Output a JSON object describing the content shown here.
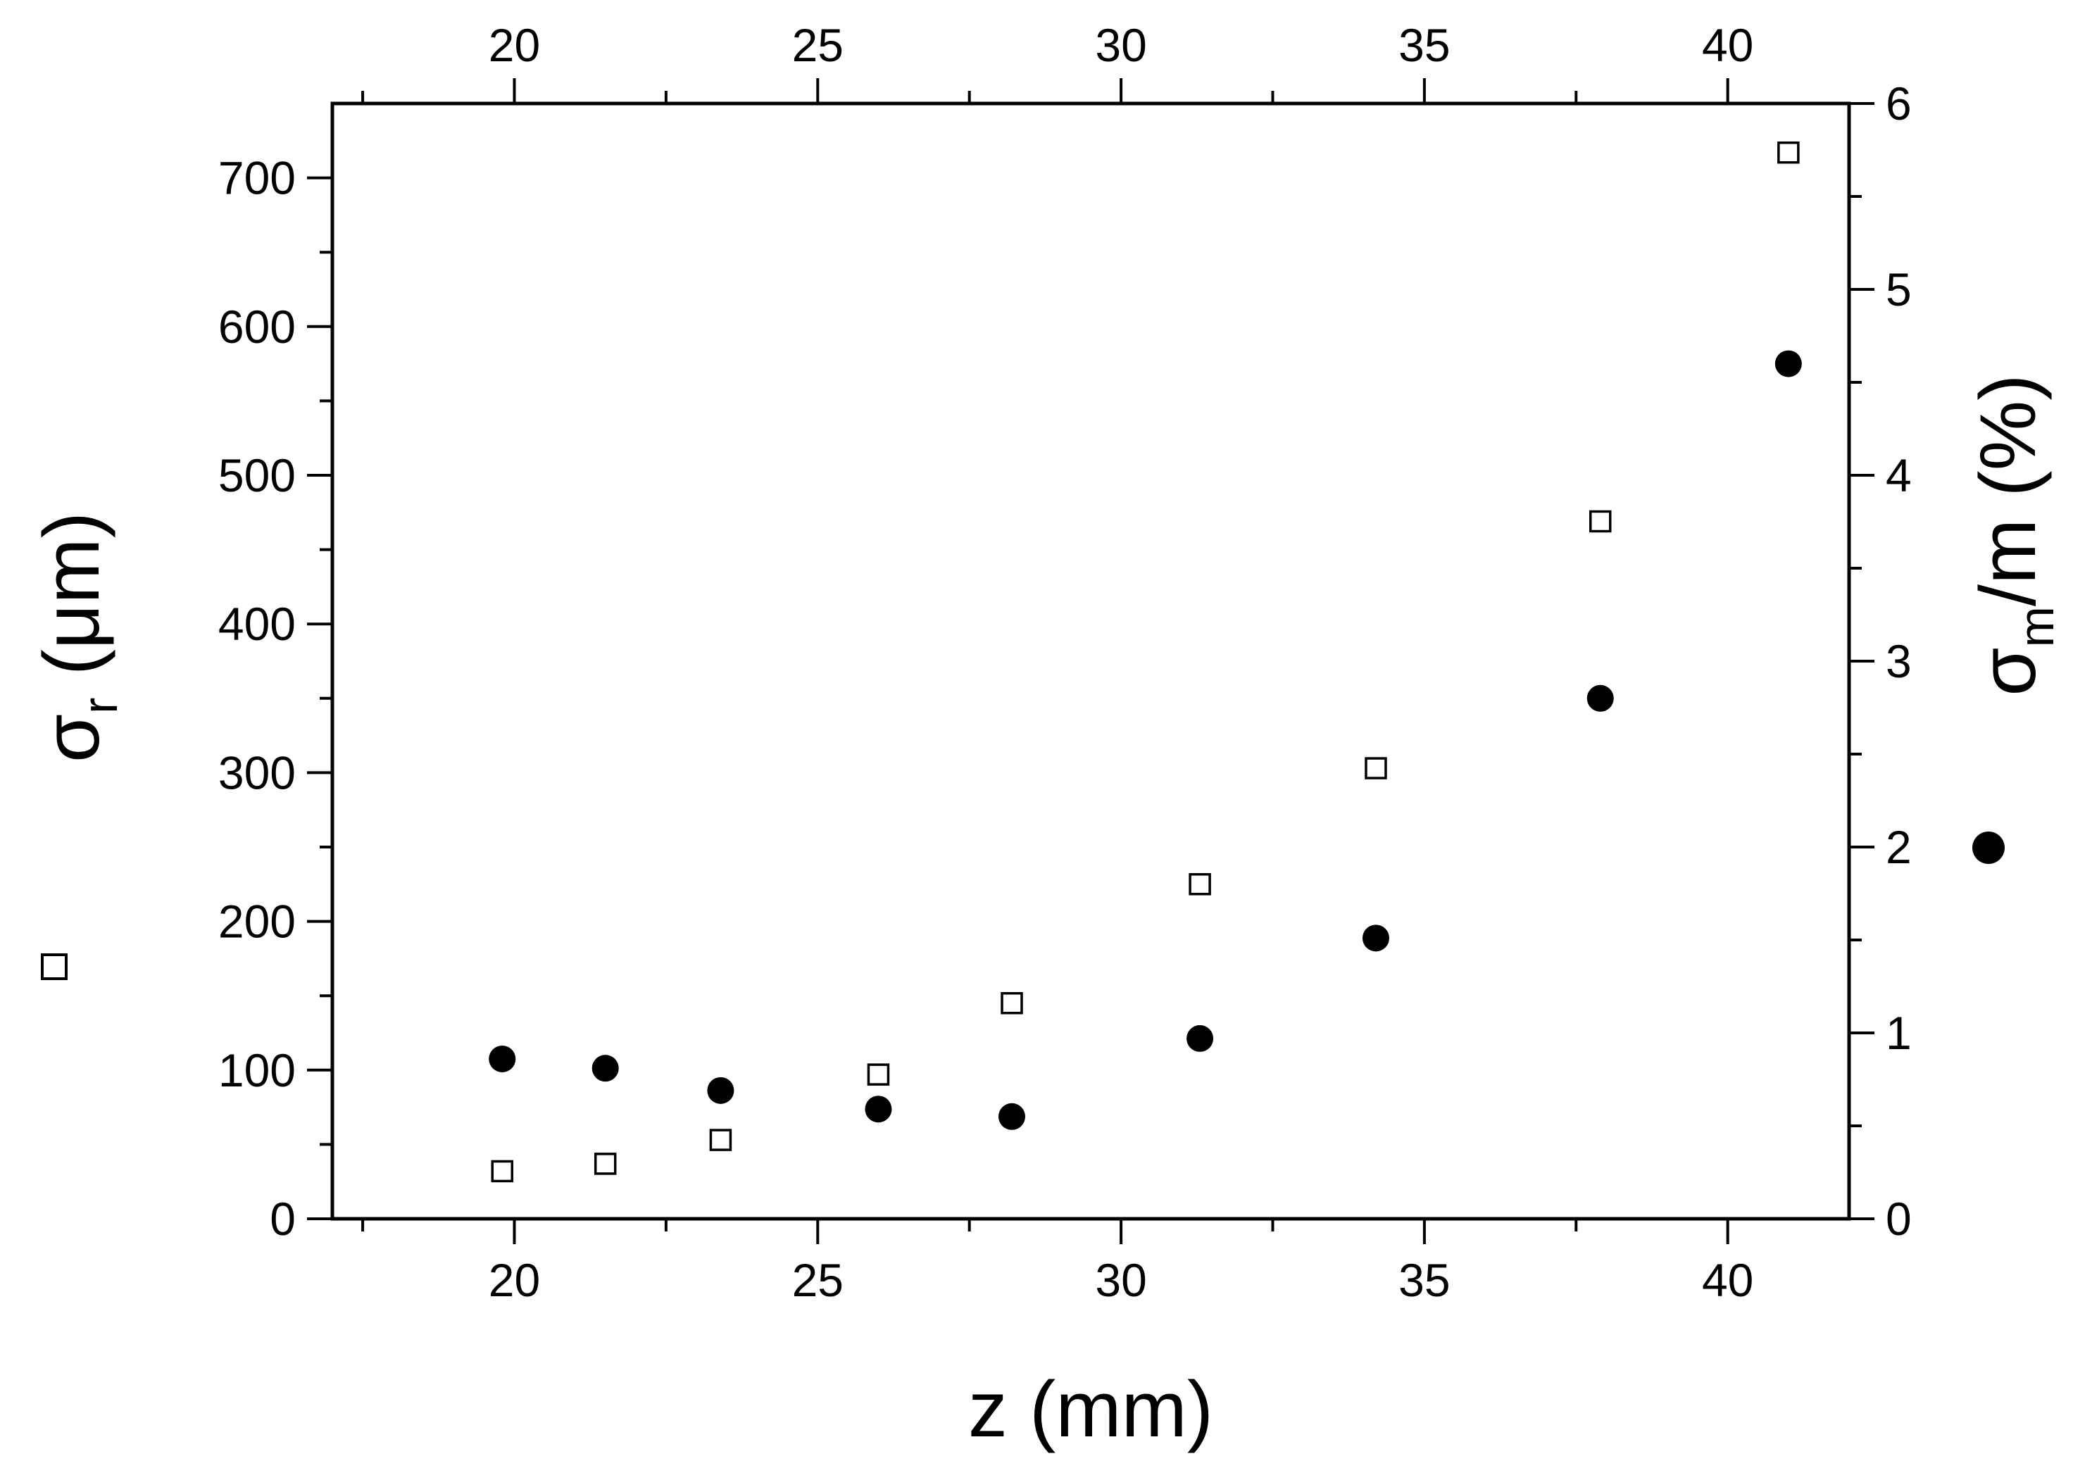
{
  "chart_data": {
    "type": "scatter",
    "title": "",
    "xlabel": "z (mm)",
    "xlim": [
      17,
      42
    ],
    "x_ticks": [
      20,
      25,
      30,
      35,
      40
    ],
    "y_left": {
      "label_base": "σ",
      "label_sub": "r",
      "label_rest": " (μm)",
      "lim": [
        0,
        750
      ],
      "ticks": [
        0,
        100,
        200,
        300,
        400,
        500,
        600,
        700
      ]
    },
    "y_right": {
      "label_base": "σ",
      "label_sub": "m",
      "label_rest": "/m (%)",
      "lim": [
        0,
        6
      ],
      "ticks": [
        0,
        1,
        2,
        3,
        4,
        5,
        6
      ]
    },
    "legend_markers": {
      "left": "open-square",
      "right": "filled-circle"
    },
    "series": [
      {
        "marker": "open-square",
        "axis": "left",
        "x": [
          19.8,
          21.5,
          23.4,
          26.0,
          28.2,
          31.3,
          34.2,
          37.9,
          41.0
        ],
        "y": [
          32,
          37,
          53,
          97,
          145,
          225,
          303,
          469,
          717
        ]
      },
      {
        "marker": "filled-circle",
        "axis": "right",
        "x": [
          19.8,
          21.5,
          23.4,
          26.0,
          28.2,
          31.3,
          34.2,
          37.9,
          41.0
        ],
        "y": [
          0.86,
          0.81,
          0.69,
          0.59,
          0.55,
          0.97,
          1.51,
          2.8,
          4.6
        ]
      }
    ]
  }
}
